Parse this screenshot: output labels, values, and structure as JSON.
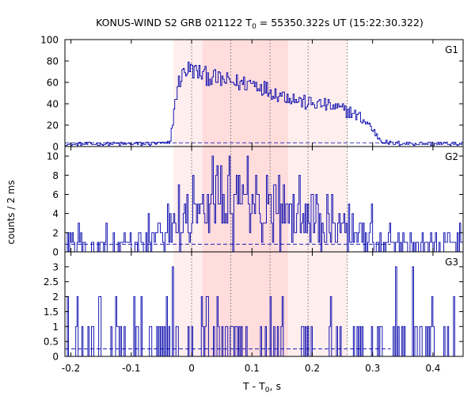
{
  "chart_data": {
    "type": "line",
    "title": {
      "prefix": "KONUS-WIND S2 GRB 021122 T",
      "sub": "0",
      "suffix": " = 55350.322s UT (15:22:30.322)"
    },
    "xlabel": {
      "prefix": "T - T",
      "sub": "0",
      "suffix": ", s"
    },
    "ylabel": "counts / 2 ms",
    "xlim": [
      -0.21,
      0.45
    ],
    "xticks": [
      -0.2,
      -0.1,
      0,
      0.1,
      0.2,
      0.3,
      0.4
    ],
    "xtick_labels": [
      "-0.2",
      "-0.1",
      "0",
      "0.1",
      "0.2",
      "0.3",
      "0.4"
    ],
    "series_color": "#0000aa",
    "highlight_color": "#ff6666",
    "bands": [
      {
        "x0": -0.03,
        "x1": 0.018,
        "level": "light"
      },
      {
        "x0": 0.018,
        "x1": 0.16,
        "level": "dark"
      },
      {
        "x0": 0.16,
        "x1": 0.258,
        "level": "light"
      }
    ],
    "vlines": [
      0,
      0.065,
      0.13,
      0.193,
      0.258
    ],
    "panels": [
      {
        "name": "G1",
        "ylim": [
          0,
          100
        ],
        "yticks": [
          0,
          20,
          40,
          60,
          80,
          100
        ],
        "ytick_labels": [
          "0",
          "20",
          "40",
          "60",
          "80",
          "100"
        ],
        "background": 3.5,
        "anchors": [
          [
            -0.21,
            2
          ],
          [
            -0.1,
            2.5
          ],
          [
            -0.05,
            3
          ],
          [
            -0.04,
            3
          ],
          [
            -0.035,
            3.5
          ],
          [
            -0.03,
            30
          ],
          [
            -0.025,
            50
          ],
          [
            -0.02,
            62
          ],
          [
            -0.01,
            72
          ],
          [
            0,
            72
          ],
          [
            0.02,
            67
          ],
          [
            0.05,
            62
          ],
          [
            0.08,
            59
          ],
          [
            0.1,
            60
          ],
          [
            0.12,
            55
          ],
          [
            0.14,
            50
          ],
          [
            0.16,
            47
          ],
          [
            0.18,
            42
          ],
          [
            0.2,
            40
          ],
          [
            0.22,
            39
          ],
          [
            0.24,
            36
          ],
          [
            0.26,
            33
          ],
          [
            0.28,
            27
          ],
          [
            0.295,
            20
          ],
          [
            0.305,
            12
          ],
          [
            0.315,
            5
          ],
          [
            0.33,
            3
          ],
          [
            0.45,
            2.5
          ]
        ]
      },
      {
        "name": "G2",
        "ylim": [
          0,
          11
        ],
        "yticks": [
          0,
          2,
          4,
          6,
          8,
          10
        ],
        "ytick_labels": [
          "0",
          "2",
          "4",
          "6",
          "8",
          "10"
        ],
        "background": 0.8,
        "anchors": [
          [
            -0.21,
            0.8
          ],
          [
            -0.08,
            1
          ],
          [
            -0.05,
            1.5
          ],
          [
            -0.03,
            2.5
          ],
          [
            0,
            4
          ],
          [
            0.05,
            4.5
          ],
          [
            0.1,
            4.5
          ],
          [
            0.15,
            4
          ],
          [
            0.2,
            3
          ],
          [
            0.25,
            2.5
          ],
          [
            0.3,
            1.5
          ],
          [
            0.35,
            1
          ],
          [
            0.45,
            0.8
          ]
        ],
        "peaks": [
          [
            0.003,
            8
          ],
          [
            0.035,
            10
          ],
          [
            0.06,
            8
          ],
          [
            0.085,
            7
          ],
          [
            0.125,
            8
          ],
          [
            -0.07,
            4
          ]
        ]
      },
      {
        "name": "G3",
        "ylim": [
          0,
          3.5
        ],
        "yticks": [
          0,
          0.5,
          1,
          1.5,
          2,
          2.5,
          3
        ],
        "ytick_labels": [
          "0",
          "0.5",
          "1",
          "1.5",
          "2",
          "2.5",
          "3"
        ],
        "background": 0.25,
        "anchors": [
          [
            -0.21,
            0.28
          ],
          [
            -0.1,
            0.28
          ],
          [
            0,
            0.33
          ],
          [
            0.1,
            0.33
          ],
          [
            0.2,
            0.3
          ],
          [
            0.45,
            0.28
          ]
        ],
        "peaks": [
          [
            -0.032,
            3
          ],
          [
            0.367,
            3
          ],
          [
            -0.152,
            2
          ],
          [
            0.025,
            2
          ],
          [
            0.15,
            2
          ],
          [
            0.23,
            2
          ],
          [
            0.435,
            2
          ],
          [
            -0.045,
            1
          ],
          [
            0.09,
            1
          ],
          [
            0.275,
            1
          ]
        ]
      }
    ]
  }
}
